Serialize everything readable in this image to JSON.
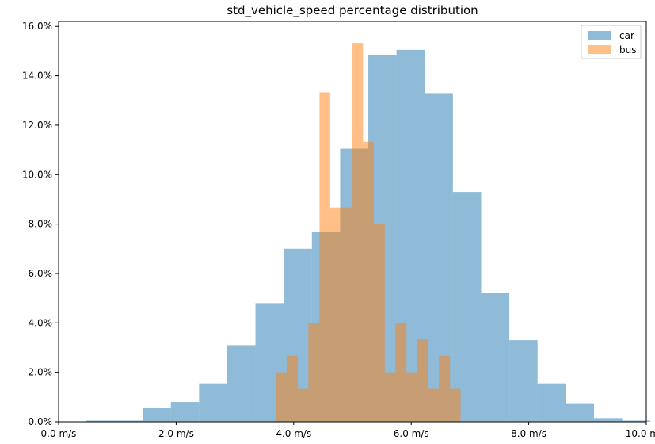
{
  "chart_data": {
    "type": "bar",
    "title": "std_vehicle_speed percentage distribution",
    "xlabel": "",
    "ylabel": "",
    "xlim": [
      0,
      10
    ],
    "ylim": [
      0,
      16.2
    ],
    "x_ticks": [
      0,
      2,
      4,
      6,
      8,
      10
    ],
    "x_tick_labels": [
      "0.0 m/s",
      "2.0 m/s",
      "4.0 m/s",
      "6.0 m/s",
      "8.0 m/s",
      "10.0 m/s"
    ],
    "y_ticks": [
      0,
      2,
      4,
      6,
      8,
      10,
      12,
      14,
      16
    ],
    "y_tick_labels": [
      "0.0%",
      "2.0%",
      "4.0%",
      "6.0%",
      "8.0%",
      "10.0%",
      "12.0%",
      "14.0%",
      "16.0%"
    ],
    "grid": false,
    "legend_position": "top-right",
    "series": [
      {
        "name": "car",
        "color": "#1f77b4",
        "opacity": 0.5,
        "bins": [
          {
            "x0": 0.47,
            "x1": 0.95,
            "y": 0.05
          },
          {
            "x0": 0.95,
            "x1": 1.43,
            "y": 0.05
          },
          {
            "x0": 1.43,
            "x1": 1.91,
            "y": 0.55
          },
          {
            "x0": 1.91,
            "x1": 2.39,
            "y": 0.8
          },
          {
            "x0": 2.39,
            "x1": 2.87,
            "y": 1.55
          },
          {
            "x0": 2.87,
            "x1": 3.35,
            "y": 3.1
          },
          {
            "x0": 3.35,
            "x1": 3.83,
            "y": 4.8
          },
          {
            "x0": 3.83,
            "x1": 4.31,
            "y": 7.0
          },
          {
            "x0": 4.31,
            "x1": 4.79,
            "y": 7.7
          },
          {
            "x0": 4.79,
            "x1": 5.27,
            "y": 11.05
          },
          {
            "x0": 5.27,
            "x1": 5.75,
            "y": 14.85
          },
          {
            "x0": 5.75,
            "x1": 6.23,
            "y": 15.05
          },
          {
            "x0": 6.23,
            "x1": 6.71,
            "y": 13.3
          },
          {
            "x0": 6.71,
            "x1": 7.19,
            "y": 9.3
          },
          {
            "x0": 7.19,
            "x1": 7.67,
            "y": 5.2
          },
          {
            "x0": 7.67,
            "x1": 8.15,
            "y": 3.3
          },
          {
            "x0": 8.15,
            "x1": 8.63,
            "y": 1.55
          },
          {
            "x0": 8.63,
            "x1": 9.11,
            "y": 0.75
          },
          {
            "x0": 9.11,
            "x1": 9.59,
            "y": 0.15
          },
          {
            "x0": 9.59,
            "x1": 10.07,
            "y": 0.05
          }
        ]
      },
      {
        "name": "bus",
        "color": "#ff7f0e",
        "opacity": 0.5,
        "bins": [
          {
            "x0": 3.7,
            "x1": 3.88,
            "y": 2.0
          },
          {
            "x0": 3.88,
            "x1": 4.07,
            "y": 2.67
          },
          {
            "x0": 4.07,
            "x1": 4.25,
            "y": 1.33
          },
          {
            "x0": 4.25,
            "x1": 4.44,
            "y": 4.0
          },
          {
            "x0": 4.44,
            "x1": 4.62,
            "y": 13.33
          },
          {
            "x0": 4.62,
            "x1": 4.81,
            "y": 8.67
          },
          {
            "x0": 4.81,
            "x1": 4.99,
            "y": 8.67
          },
          {
            "x0": 4.99,
            "x1": 5.18,
            "y": 15.33
          },
          {
            "x0": 5.18,
            "x1": 5.36,
            "y": 11.33
          },
          {
            "x0": 5.36,
            "x1": 5.55,
            "y": 8.0
          },
          {
            "x0": 5.55,
            "x1": 5.73,
            "y": 2.0
          },
          {
            "x0": 5.73,
            "x1": 5.92,
            "y": 4.0
          },
          {
            "x0": 5.92,
            "x1": 6.1,
            "y": 2.0
          },
          {
            "x0": 6.1,
            "x1": 6.29,
            "y": 3.33
          },
          {
            "x0": 6.29,
            "x1": 6.47,
            "y": 1.33
          },
          {
            "x0": 6.47,
            "x1": 6.66,
            "y": 2.67
          },
          {
            "x0": 6.66,
            "x1": 6.84,
            "y": 1.33
          }
        ]
      }
    ]
  }
}
